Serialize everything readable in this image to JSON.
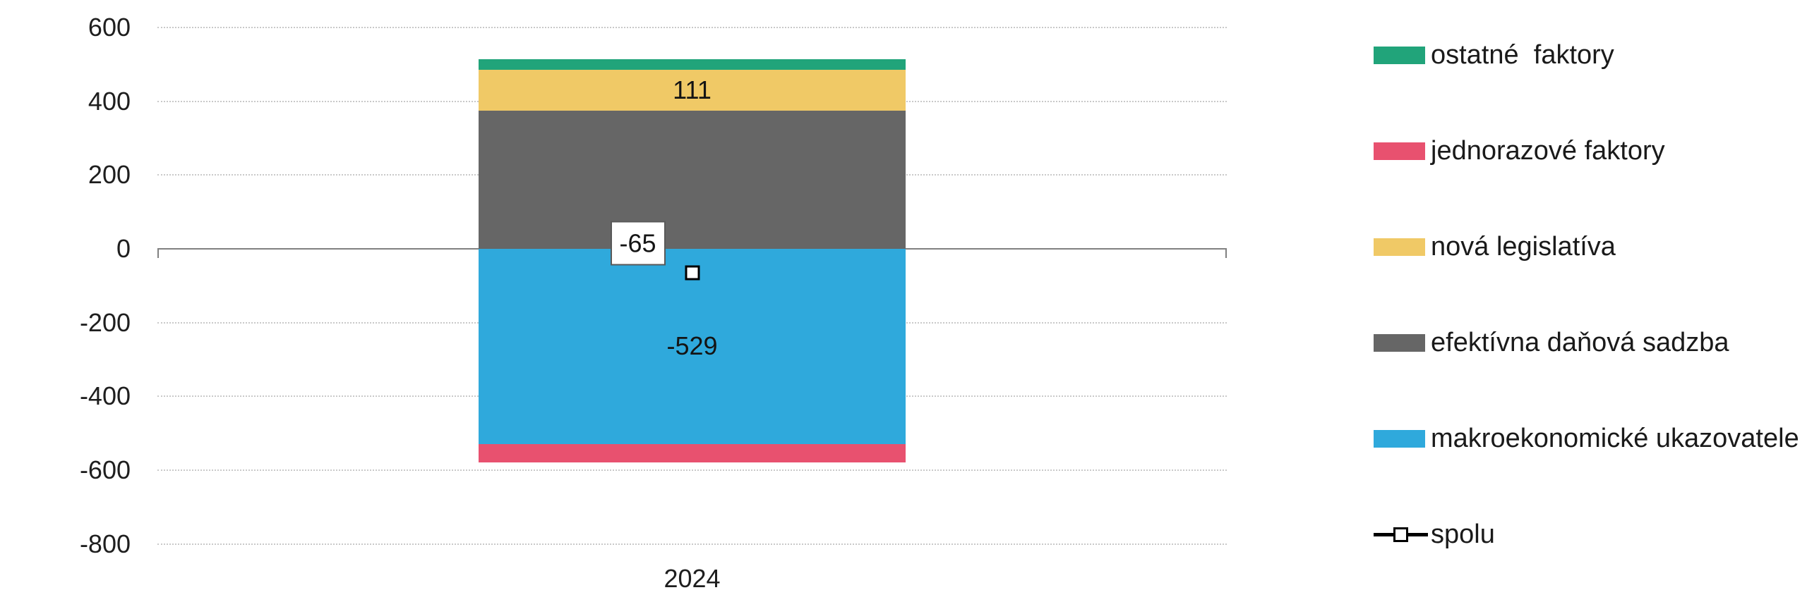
{
  "chart_data": {
    "type": "bar",
    "stacked": true,
    "title": "",
    "xlabel": "",
    "ylabel": "",
    "categories": [
      "2024"
    ],
    "series": [
      {
        "name": "ostatné  faktory",
        "color": "#21A47A",
        "values": [
          28
        ]
      },
      {
        "name": "jednorazové faktory",
        "color": "#E8516F",
        "values": [
          -49
        ]
      },
      {
        "name": "nová legislatíva",
        "color": "#F0C966",
        "values": [
          111
        ]
      },
      {
        "name": "efektívna daňová sadzba",
        "color": "#666666",
        "values": [
          374
        ]
      },
      {
        "name": "makroekonomické ukazovatele",
        "color": "#2FA9DC",
        "values": [
          -529
        ]
      },
      {
        "name": "spolu",
        "chart_type": "line",
        "marker": "open-square",
        "color": "#000000",
        "values": [
          -65
        ]
      }
    ],
    "data_labels": [
      {
        "series_index": 2,
        "text": "111",
        "boxed": false
      },
      {
        "series_index": 4,
        "text": "-529",
        "boxed": false
      },
      {
        "series_index": 5,
        "text": "-65",
        "boxed": true
      }
    ],
    "yticks": [
      600,
      400,
      200,
      0,
      -200,
      -400,
      -600,
      -800
    ],
    "ylim": [
      -800,
      600
    ],
    "grid": "horizontal-dotted",
    "legend_position": "right"
  },
  "legend": {
    "items": [
      {
        "label": "ostatné  faktory",
        "swatch": "rect",
        "color": "#21A47A"
      },
      {
        "label": "jednorazové faktory",
        "swatch": "rect",
        "color": "#E8516F"
      },
      {
        "label": "nová legislatíva",
        "swatch": "rect",
        "color": "#F0C966"
      },
      {
        "label": "efektívna daňová sadzba",
        "swatch": "rect",
        "color": "#666666"
      },
      {
        "label": "makroekonomické ukazovatele",
        "swatch": "rect",
        "color": "#2FA9DC"
      },
      {
        "label": "spolu",
        "swatch": "line-open-square",
        "color": "#000000"
      }
    ]
  },
  "colors": {
    "axis_line": "#808080",
    "gridline": "#C9C9C9",
    "text": "#1E1E1E",
    "label_box_border": "#595959",
    "label_box_fill": "#FFFFFF"
  }
}
